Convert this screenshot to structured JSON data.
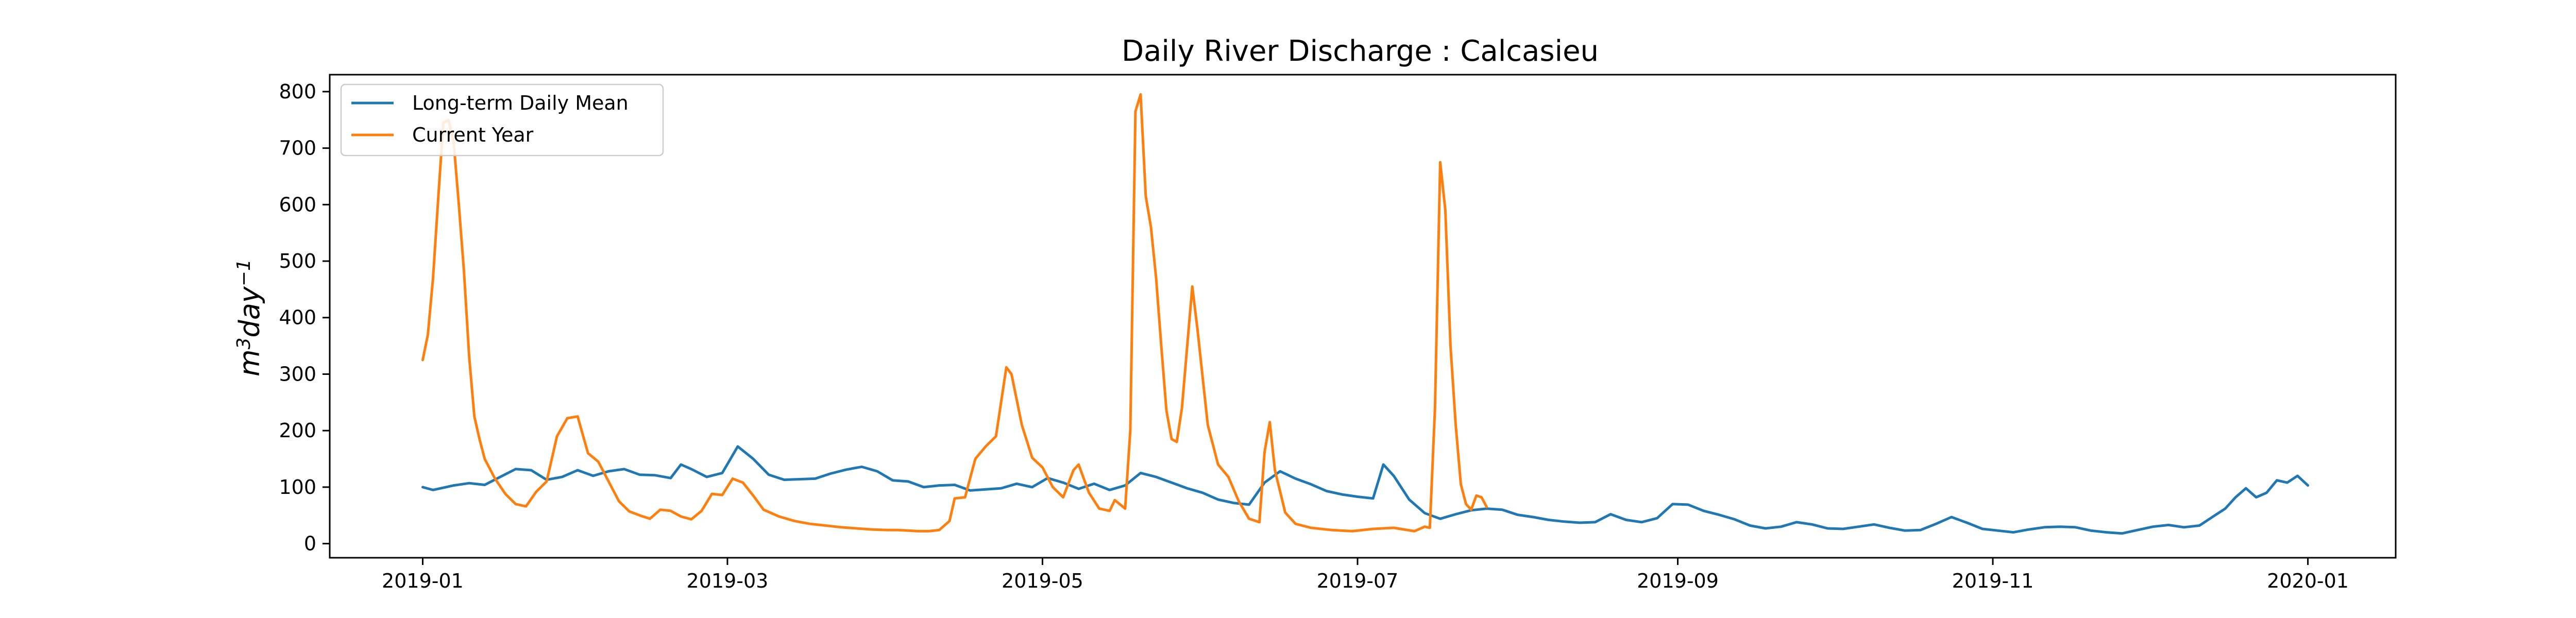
{
  "chart_data": {
    "type": "line",
    "title": "Daily River Discharge : Calcasieu",
    "xlabel": "",
    "ylabel": "m³day⁻¹",
    "ylabel_base": "m",
    "ylabel_sup1": "3",
    "ylabel_mid": "day",
    "ylabel_sup2": "−1",
    "xlim": [
      "2018-12-14",
      "2020-01-18"
    ],
    "ylim": [
      -25,
      830
    ],
    "x_ticks": [
      "2019-01",
      "2019-03",
      "2019-05",
      "2019-07",
      "2019-09",
      "2019-11",
      "2020-01"
    ],
    "x_tick_dates": [
      "2019-01-01",
      "2019-03-01",
      "2019-05-01",
      "2019-07-01",
      "2019-09-01",
      "2019-11-01",
      "2020-01-01"
    ],
    "y_ticks": [
      "0",
      "100",
      "200",
      "300",
      "400",
      "500",
      "600",
      "700",
      "800"
    ],
    "grid": false,
    "legend_position": "top-left",
    "series": [
      {
        "name": "Long-term Daily Mean",
        "color": "#1f77b4",
        "points": [
          [
            "2019-01-01",
            100
          ],
          [
            "2019-01-03",
            95
          ],
          [
            "2019-01-07",
            103
          ],
          [
            "2019-01-10",
            107
          ],
          [
            "2019-01-13",
            104
          ],
          [
            "2019-01-16",
            118
          ],
          [
            "2019-01-19",
            132
          ],
          [
            "2019-01-22",
            130
          ],
          [
            "2019-01-25",
            113
          ],
          [
            "2019-01-28",
            118
          ],
          [
            "2019-01-31",
            130
          ],
          [
            "2019-02-03",
            120
          ],
          [
            "2019-02-06",
            128
          ],
          [
            "2019-02-09",
            132
          ],
          [
            "2019-02-12",
            122
          ],
          [
            "2019-02-15",
            121
          ],
          [
            "2019-02-18",
            116
          ],
          [
            "2019-02-20",
            140
          ],
          [
            "2019-02-22",
            132
          ],
          [
            "2019-02-25",
            118
          ],
          [
            "2019-02-28",
            125
          ],
          [
            "2019-03-03",
            172
          ],
          [
            "2019-03-06",
            150
          ],
          [
            "2019-03-09",
            122
          ],
          [
            "2019-03-12",
            113
          ],
          [
            "2019-03-15",
            114
          ],
          [
            "2019-03-18",
            115
          ],
          [
            "2019-03-21",
            124
          ],
          [
            "2019-03-24",
            131
          ],
          [
            "2019-03-27",
            136
          ],
          [
            "2019-03-30",
            128
          ],
          [
            "2019-04-02",
            112
          ],
          [
            "2019-04-05",
            110
          ],
          [
            "2019-04-08",
            100
          ],
          [
            "2019-04-11",
            103
          ],
          [
            "2019-04-14",
            104
          ],
          [
            "2019-04-17",
            94
          ],
          [
            "2019-04-20",
            96
          ],
          [
            "2019-04-23",
            98
          ],
          [
            "2019-04-26",
            106
          ],
          [
            "2019-04-29",
            100
          ],
          [
            "2019-05-02",
            116
          ],
          [
            "2019-05-05",
            108
          ],
          [
            "2019-05-08",
            97
          ],
          [
            "2019-05-11",
            106
          ],
          [
            "2019-05-14",
            95
          ],
          [
            "2019-05-17",
            103
          ],
          [
            "2019-05-20",
            125
          ],
          [
            "2019-05-23",
            118
          ],
          [
            "2019-05-26",
            108
          ],
          [
            "2019-05-29",
            98
          ],
          [
            "2019-06-01",
            90
          ],
          [
            "2019-06-04",
            78
          ],
          [
            "2019-06-07",
            72
          ],
          [
            "2019-06-10",
            69
          ],
          [
            "2019-06-13",
            108
          ],
          [
            "2019-06-16",
            128
          ],
          [
            "2019-06-19",
            115
          ],
          [
            "2019-06-22",
            105
          ],
          [
            "2019-06-25",
            93
          ],
          [
            "2019-06-28",
            87
          ],
          [
            "2019-07-01",
            83
          ],
          [
            "2019-07-04",
            80
          ],
          [
            "2019-07-06",
            140
          ],
          [
            "2019-07-08",
            120
          ],
          [
            "2019-07-11",
            78
          ],
          [
            "2019-07-14",
            54
          ],
          [
            "2019-07-17",
            44
          ],
          [
            "2019-07-20",
            52
          ],
          [
            "2019-07-23",
            59
          ],
          [
            "2019-07-26",
            62
          ],
          [
            "2019-07-29",
            60
          ],
          [
            "2019-08-01",
            51
          ],
          [
            "2019-08-04",
            47
          ],
          [
            "2019-08-07",
            42
          ],
          [
            "2019-08-10",
            39
          ],
          [
            "2019-08-13",
            37
          ],
          [
            "2019-08-16",
            38
          ],
          [
            "2019-08-19",
            52
          ],
          [
            "2019-08-22",
            42
          ],
          [
            "2019-08-25",
            38
          ],
          [
            "2019-08-28",
            45
          ],
          [
            "2019-08-31",
            70
          ],
          [
            "2019-09-03",
            69
          ],
          [
            "2019-09-06",
            58
          ],
          [
            "2019-09-09",
            51
          ],
          [
            "2019-09-12",
            43
          ],
          [
            "2019-09-15",
            32
          ],
          [
            "2019-09-18",
            27
          ],
          [
            "2019-09-21",
            30
          ],
          [
            "2019-09-24",
            38
          ],
          [
            "2019-09-27",
            34
          ],
          [
            "2019-09-30",
            27
          ],
          [
            "2019-10-03",
            26
          ],
          [
            "2019-10-06",
            30
          ],
          [
            "2019-10-09",
            34
          ],
          [
            "2019-10-12",
            28
          ],
          [
            "2019-10-15",
            23
          ],
          [
            "2019-10-18",
            24
          ],
          [
            "2019-10-21",
            35
          ],
          [
            "2019-10-24",
            47
          ],
          [
            "2019-10-27",
            37
          ],
          [
            "2019-10-30",
            26
          ],
          [
            "2019-11-02",
            23
          ],
          [
            "2019-11-05",
            20
          ],
          [
            "2019-11-08",
            25
          ],
          [
            "2019-11-11",
            29
          ],
          [
            "2019-11-14",
            30
          ],
          [
            "2019-11-17",
            29
          ],
          [
            "2019-11-20",
            23
          ],
          [
            "2019-11-23",
            20
          ],
          [
            "2019-11-26",
            18
          ],
          [
            "2019-11-29",
            24
          ],
          [
            "2019-12-02",
            30
          ],
          [
            "2019-12-05",
            33
          ],
          [
            "2019-12-08",
            29
          ],
          [
            "2019-12-11",
            32
          ],
          [
            "2019-12-14",
            50
          ],
          [
            "2019-12-16",
            62
          ],
          [
            "2019-12-18",
            82
          ],
          [
            "2019-12-20",
            98
          ],
          [
            "2019-12-22",
            82
          ],
          [
            "2019-12-24",
            90
          ],
          [
            "2019-12-26",
            112
          ],
          [
            "2019-12-28",
            108
          ],
          [
            "2019-12-30",
            120
          ],
          [
            "2020-01-01",
            103
          ]
        ]
      },
      {
        "name": "Current Year",
        "color": "#ff7f0e",
        "points": [
          [
            "2019-01-01",
            325
          ],
          [
            "2019-01-02",
            370
          ],
          [
            "2019-01-03",
            470
          ],
          [
            "2019-01-04",
            610
          ],
          [
            "2019-01-05",
            745
          ],
          [
            "2019-01-06",
            750
          ],
          [
            "2019-01-07",
            710
          ],
          [
            "2019-01-08",
            600
          ],
          [
            "2019-01-09",
            480
          ],
          [
            "2019-01-10",
            330
          ],
          [
            "2019-01-11",
            225
          ],
          [
            "2019-01-12",
            185
          ],
          [
            "2019-01-13",
            150
          ],
          [
            "2019-01-15",
            115
          ],
          [
            "2019-01-17",
            88
          ],
          [
            "2019-01-19",
            70
          ],
          [
            "2019-01-21",
            66
          ],
          [
            "2019-01-23",
            92
          ],
          [
            "2019-01-25",
            110
          ],
          [
            "2019-01-27",
            190
          ],
          [
            "2019-01-29",
            222
          ],
          [
            "2019-01-31",
            225
          ],
          [
            "2019-02-02",
            160
          ],
          [
            "2019-02-04",
            145
          ],
          [
            "2019-02-06",
            110
          ],
          [
            "2019-02-08",
            75
          ],
          [
            "2019-02-10",
            57
          ],
          [
            "2019-02-12",
            50
          ],
          [
            "2019-02-14",
            44
          ],
          [
            "2019-02-16",
            60
          ],
          [
            "2019-02-18",
            58
          ],
          [
            "2019-02-20",
            48
          ],
          [
            "2019-02-22",
            43
          ],
          [
            "2019-02-24",
            58
          ],
          [
            "2019-02-26",
            88
          ],
          [
            "2019-02-28",
            86
          ],
          [
            "2019-03-02",
            115
          ],
          [
            "2019-03-04",
            108
          ],
          [
            "2019-03-06",
            85
          ],
          [
            "2019-03-08",
            60
          ],
          [
            "2019-03-11",
            48
          ],
          [
            "2019-03-14",
            40
          ],
          [
            "2019-03-17",
            35
          ],
          [
            "2019-03-20",
            32
          ],
          [
            "2019-03-23",
            29
          ],
          [
            "2019-03-26",
            27
          ],
          [
            "2019-03-29",
            25
          ],
          [
            "2019-04-01",
            24
          ],
          [
            "2019-04-03",
            24
          ],
          [
            "2019-04-05",
            23
          ],
          [
            "2019-04-07",
            22
          ],
          [
            "2019-04-09",
            22
          ],
          [
            "2019-04-11",
            24
          ],
          [
            "2019-04-13",
            40
          ],
          [
            "2019-04-14",
            80
          ],
          [
            "2019-04-16",
            82
          ],
          [
            "2019-04-18",
            150
          ],
          [
            "2019-04-20",
            172
          ],
          [
            "2019-04-22",
            190
          ],
          [
            "2019-04-24",
            312
          ],
          [
            "2019-04-25",
            300
          ],
          [
            "2019-04-27",
            210
          ],
          [
            "2019-04-29",
            152
          ],
          [
            "2019-05-01",
            135
          ],
          [
            "2019-05-03",
            100
          ],
          [
            "2019-05-05",
            82
          ],
          [
            "2019-05-07",
            130
          ],
          [
            "2019-05-08",
            140
          ],
          [
            "2019-05-10",
            90
          ],
          [
            "2019-05-12",
            62
          ],
          [
            "2019-05-14",
            58
          ],
          [
            "2019-05-15",
            77
          ],
          [
            "2019-05-17",
            62
          ],
          [
            "2019-05-18",
            200
          ],
          [
            "2019-05-19",
            765
          ],
          [
            "2019-05-20",
            795
          ],
          [
            "2019-05-21",
            615
          ],
          [
            "2019-05-22",
            560
          ],
          [
            "2019-05-23",
            470
          ],
          [
            "2019-05-24",
            350
          ],
          [
            "2019-05-25",
            235
          ],
          [
            "2019-05-26",
            185
          ],
          [
            "2019-05-27",
            180
          ],
          [
            "2019-05-28",
            240
          ],
          [
            "2019-05-30",
            455
          ],
          [
            "2019-05-31",
            380
          ],
          [
            "2019-06-02",
            210
          ],
          [
            "2019-06-04",
            140
          ],
          [
            "2019-06-06",
            118
          ],
          [
            "2019-06-08",
            75
          ],
          [
            "2019-06-10",
            44
          ],
          [
            "2019-06-12",
            38
          ],
          [
            "2019-06-13",
            162
          ],
          [
            "2019-06-14",
            215
          ],
          [
            "2019-06-15",
            130
          ],
          [
            "2019-06-17",
            55
          ],
          [
            "2019-06-19",
            35
          ],
          [
            "2019-06-22",
            28
          ],
          [
            "2019-06-26",
            24
          ],
          [
            "2019-06-30",
            22
          ],
          [
            "2019-07-04",
            26
          ],
          [
            "2019-07-08",
            28
          ],
          [
            "2019-07-12",
            22
          ],
          [
            "2019-07-14",
            30
          ],
          [
            "2019-07-15",
            28
          ],
          [
            "2019-07-16",
            240
          ],
          [
            "2019-07-17",
            675
          ],
          [
            "2019-07-18",
            590
          ],
          [
            "2019-07-19",
            350
          ],
          [
            "2019-07-20",
            210
          ],
          [
            "2019-07-21",
            105
          ],
          [
            "2019-07-22",
            70
          ],
          [
            "2019-07-23",
            60
          ],
          [
            "2019-07-24",
            85
          ],
          [
            "2019-07-25",
            82
          ],
          [
            "2019-07-26",
            65
          ]
        ]
      }
    ]
  }
}
